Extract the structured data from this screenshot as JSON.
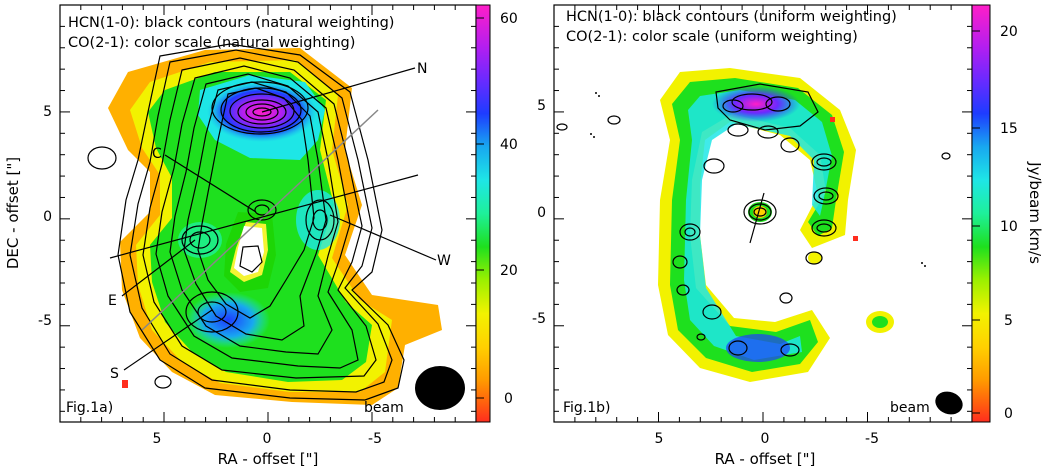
{
  "figure": {
    "panels": [
      {
        "id": "fig1a",
        "legend_lines": [
          "HCN(1-0): black contours (natural weighting)",
          "CO(2-1): color scale (natural weighting)"
        ],
        "panel_label": "Fig.1a)",
        "beam_label": "beam",
        "xlabel": "RA - offset [\"]",
        "ylabel": "DEC - offset [\"]",
        "xticks": [
          "5",
          "0",
          "-5"
        ],
        "yticks": [
          "5",
          "0",
          "-5"
        ],
        "colorbar_ticks": [
          "60",
          "40",
          "20",
          "0"
        ],
        "region_labels": [
          "N",
          "C",
          "W",
          "E",
          "S"
        ]
      },
      {
        "id": "fig1b",
        "legend_lines": [
          "HCN(1-0): black contours (uniform weighting)",
          "CO(2-1): color scale (uniform weighting)"
        ],
        "panel_label": "Fig.1b)",
        "beam_label": "beam",
        "xlabel": "RA - offset [\"]",
        "ylabel": "",
        "xticks": [
          "5",
          "0",
          "-5"
        ],
        "yticks": [
          "5",
          "0",
          "-5"
        ],
        "colorbar_ticks": [
          "20",
          "15",
          "10",
          "5",
          "0"
        ],
        "colorbar_label": "Jy/beam km/s"
      }
    ]
  },
  "chart_data": [
    {
      "type": "heatmap",
      "title": "",
      "annotation_lines": [
        "HCN(1-0): black contours (natural weighting)",
        "CO(2-1): color scale (natural weighting)"
      ],
      "xlabel": "RA - offset [\"]",
      "ylabel": "DEC - offset [\"]",
      "xlim": [
        10,
        -10
      ],
      "ylim": [
        -9.5,
        10
      ],
      "x_ticks": [
        5,
        0,
        -5
      ],
      "y_ticks": [
        5,
        0,
        -5
      ],
      "colorbar": {
        "range": [
          -1,
          62
        ],
        "ticks": [
          0,
          20,
          40,
          60
        ]
      },
      "regions": [
        {
          "name": "N",
          "x": -0.2,
          "y": 5
        },
        {
          "name": "C",
          "x": 0.3,
          "y": 0.3
        },
        {
          "name": "W",
          "x": -2.5,
          "y": 0
        },
        {
          "name": "E",
          "x": 3.6,
          "y": -1.2
        },
        {
          "name": "S",
          "x": 2.8,
          "y": -4.5
        }
      ],
      "peak": {
        "x": -0.3,
        "y": 5.0,
        "value": 60
      }
    },
    {
      "type": "heatmap",
      "title": "",
      "annotation_lines": [
        "HCN(1-0): black contours (uniform weighting)",
        "CO(2-1): color scale (uniform weighting)"
      ],
      "xlabel": "RA - offset [\"]",
      "ylabel": "",
      "xlim": [
        10,
        -10
      ],
      "ylim": [
        -9.5,
        10
      ],
      "x_ticks": [
        5,
        0,
        -5
      ],
      "y_ticks": [
        5,
        0,
        -5
      ],
      "colorbar": {
        "range": [
          -1,
          22
        ],
        "ticks": [
          0,
          5,
          10,
          15,
          20
        ],
        "label": "Jy/beam km/s"
      },
      "peak": {
        "x": -0.3,
        "y": 5.2,
        "value": 21
      }
    }
  ]
}
